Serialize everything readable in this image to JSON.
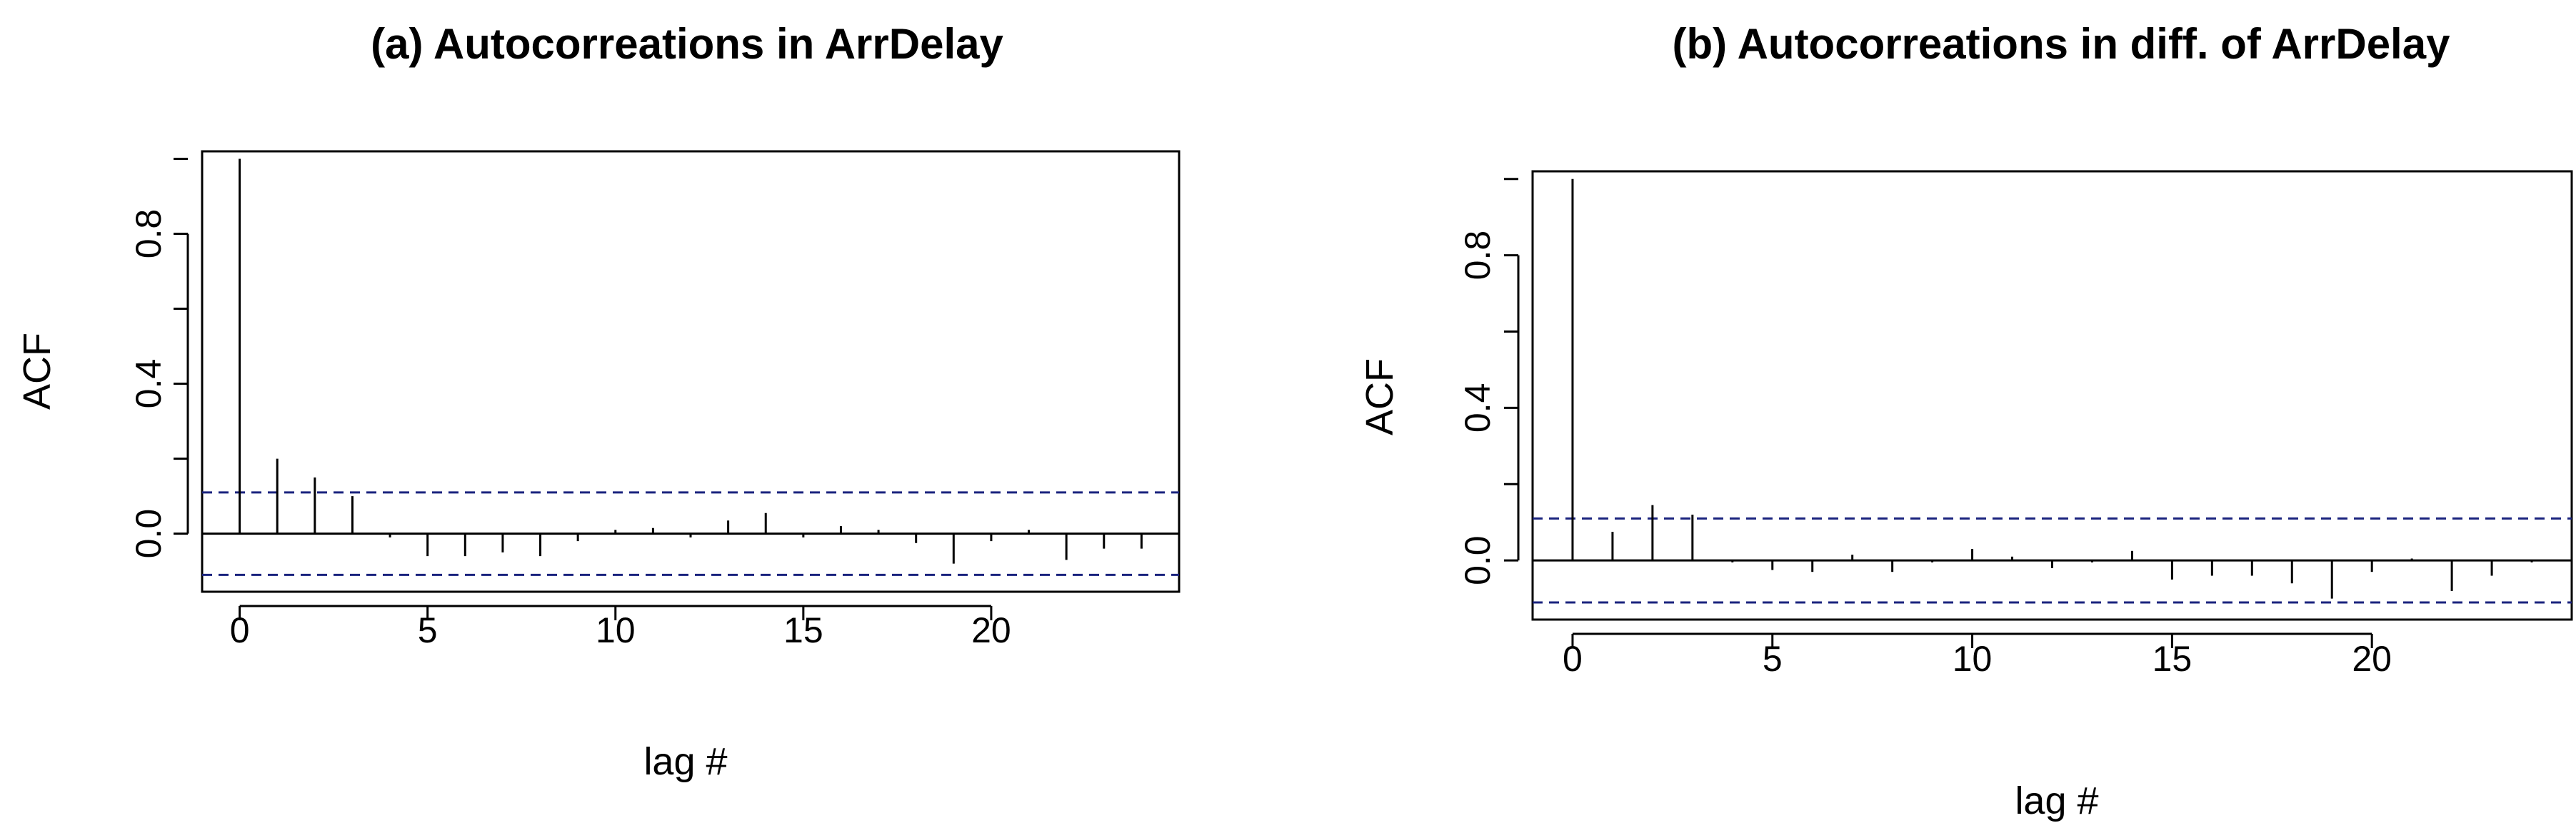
{
  "chart_data": [
    {
      "type": "bar",
      "title": "(a) Autocorreations in ArrDelay",
      "xlabel": "lag #",
      "ylabel": "ACF",
      "x": [
        0,
        1,
        2,
        3,
        4,
        5,
        6,
        7,
        8,
        9,
        10,
        11,
        12,
        13,
        14,
        15,
        16,
        17,
        18,
        19,
        20,
        21,
        22,
        23,
        24
      ],
      "values": [
        1.0,
        0.2,
        0.15,
        0.1,
        -0.01,
        -0.06,
        -0.06,
        -0.05,
        -0.06,
        -0.02,
        0.01,
        0.015,
        -0.01,
        0.035,
        0.055,
        -0.01,
        0.02,
        0.01,
        -0.025,
        -0.08,
        -0.02,
        0.01,
        -0.07,
        -0.04,
        -0.04
      ],
      "confidence_bound": 0.11,
      "xlim": [
        -1,
        25
      ],
      "ylim": [
        -0.155,
        1.02
      ],
      "xticks": [
        0,
        5,
        10,
        15,
        20
      ],
      "xtick_labels": [
        "0",
        "5",
        "10",
        "15",
        "20"
      ],
      "yticks": [
        0.0,
        0.4,
        0.8
      ],
      "ytick_labels": [
        "0.0",
        "0.4",
        "0.8"
      ],
      "bound_color": "#1a237e"
    },
    {
      "type": "bar",
      "title": "(b) Autocorreations in diff. of ArrDelay",
      "xlabel": "lag #",
      "ylabel": "ACF",
      "x": [
        0,
        1,
        2,
        3,
        4,
        5,
        6,
        7,
        8,
        9,
        10,
        11,
        12,
        13,
        14,
        15,
        16,
        17,
        18,
        19,
        20,
        21,
        22,
        23,
        24
      ],
      "values": [
        1.0,
        0.075,
        0.145,
        0.12,
        -0.005,
        -0.025,
        -0.03,
        0.015,
        -0.03,
        -0.005,
        0.03,
        0.01,
        -0.02,
        -0.005,
        0.025,
        -0.05,
        -0.04,
        -0.04,
        -0.06,
        -0.1,
        -0.03,
        0.005,
        -0.08,
        -0.04,
        -0.005
      ],
      "confidence_bound": 0.11,
      "xlim": [
        -1,
        25
      ],
      "ylim": [
        -0.155,
        1.02
      ],
      "xticks": [
        0,
        5,
        10,
        15,
        20
      ],
      "xtick_labels": [
        "0",
        "5",
        "10",
        "15",
        "20"
      ],
      "yticks": [
        0.0,
        0.4,
        0.8
      ],
      "ytick_labels": [
        "0.0",
        "0.4",
        "0.8"
      ],
      "bound_color": "#1a237e"
    }
  ]
}
